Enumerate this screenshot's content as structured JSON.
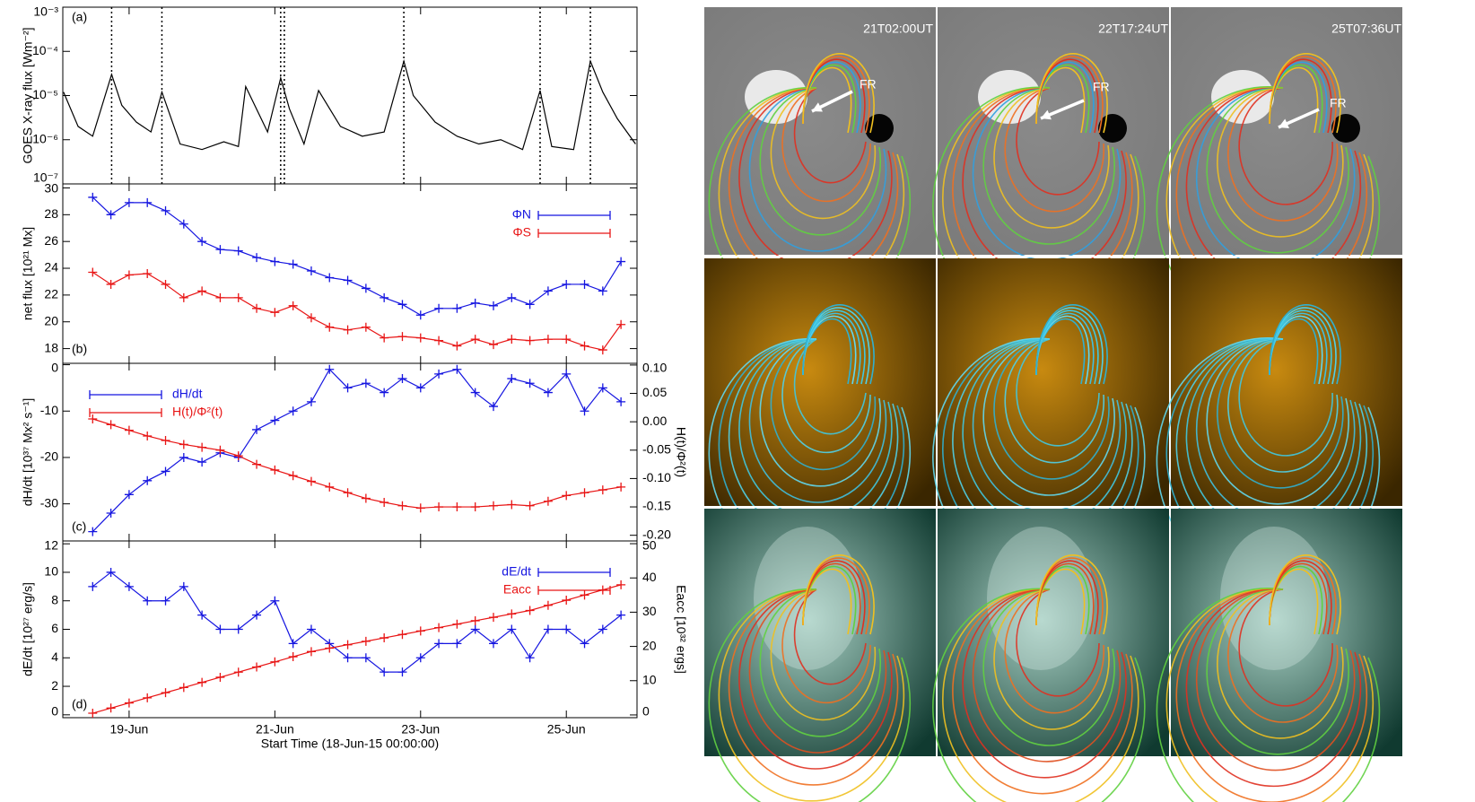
{
  "chart_data": [
    {
      "type": "line",
      "ylabel": "GOES X-ray flux [Wm⁻²]",
      "panel_label": "(a)",
      "log_y": true,
      "color": "#000000",
      "marker": "none",
      "xlim": [
        0.09,
        7.97
      ],
      "xticks": [
        1,
        3,
        5,
        7
      ],
      "ylim": [
        1e-07,
        0.001
      ],
      "yticks": [
        {
          "value": 1e-07,
          "label": "10⁻⁷"
        },
        {
          "value": 1e-06,
          "label": "10⁻⁶"
        },
        {
          "value": 1e-05,
          "label": "10⁻⁵"
        },
        {
          "value": 0.0001,
          "label": "10⁻⁴"
        },
        {
          "value": 0.001,
          "label": "10⁻³"
        }
      ],
      "vlines": [
        0.76,
        1.45,
        3.08,
        3.13,
        4.77,
        6.64,
        7.33
      ],
      "x": [
        0.1,
        0.3,
        0.5,
        0.76,
        0.9,
        1.1,
        1.3,
        1.45,
        1.7,
        2.0,
        2.3,
        2.5,
        2.6,
        2.9,
        3.08,
        3.2,
        3.4,
        3.6,
        3.9,
        4.2,
        4.5,
        4.77,
        4.9,
        5.2,
        5.5,
        5.8,
        6.1,
        6.4,
        6.64,
        6.8,
        7.1,
        7.33,
        7.5,
        7.7,
        7.95
      ],
      "values": [
        1.2e-05,
        2e-06,
        1.2e-06,
        3e-05,
        6e-06,
        2.5e-06,
        1.5e-06,
        1.2e-05,
        8e-07,
        6e-07,
        9e-07,
        7e-07,
        1.6e-05,
        1.5e-06,
        2.5e-05,
        5e-06,
        8e-07,
        1.3e-05,
        2e-06,
        1.2e-06,
        1.5e-06,
        6e-05,
        1e-05,
        2.5e-06,
        1.2e-06,
        8e-07,
        1e-06,
        6e-07,
        1.3e-05,
        7e-07,
        6e-07,
        6e-05,
        1.2e-05,
        3e-06,
        8e-07
      ]
    },
    {
      "type": "line",
      "ylabel": "net flux [10²¹ Mx]",
      "panel_label": "(b)",
      "legend": "upper right",
      "marker": "+",
      "xlim": [
        0.09,
        7.97
      ],
      "xticks": [
        1,
        3,
        5,
        7
      ],
      "ylim": [
        16.9,
        30.3
      ],
      "yticks": [
        18,
        20,
        22,
        24,
        26,
        28,
        30
      ],
      "x": [
        0.5,
        0.75,
        1.0,
        1.25,
        1.5,
        1.75,
        2.0,
        2.25,
        2.5,
        2.75,
        3.0,
        3.25,
        3.5,
        3.75,
        4.0,
        4.25,
        4.5,
        4.75,
        5.0,
        5.25,
        5.5,
        5.75,
        6.0,
        6.25,
        6.5,
        6.75,
        7.0,
        7.25,
        7.5,
        7.75
      ],
      "series": [
        {
          "name": "ΦN",
          "color": "#1515e0",
          "values": [
            29.3,
            28.0,
            28.9,
            28.9,
            28.3,
            27.3,
            26.0,
            25.4,
            25.3,
            24.8,
            24.5,
            24.3,
            23.8,
            23.3,
            23.1,
            22.5,
            21.8,
            21.3,
            20.5,
            21.0,
            21.0,
            21.4,
            21.2,
            21.8,
            21.3,
            22.3,
            22.8,
            22.8,
            22.3,
            24.5
          ]
        },
        {
          "name": "ΦS",
          "color": "#e81515",
          "values": [
            23.7,
            22.8,
            23.5,
            23.6,
            22.8,
            21.8,
            22.3,
            21.8,
            21.8,
            21.0,
            20.7,
            21.2,
            20.3,
            19.6,
            19.4,
            19.6,
            18.8,
            18.9,
            18.8,
            18.6,
            18.2,
            18.7,
            18.3,
            18.7,
            18.6,
            18.7,
            18.7,
            18.2,
            17.9,
            19.8
          ]
        }
      ]
    },
    {
      "type": "line",
      "ylabel": "dH/dt [10³⁷ Mx² s⁻¹]",
      "y2label": "H(t)/Φ²(t)",
      "panel_label": "(c)",
      "legend": "upper left",
      "marker": "+",
      "xlim": [
        0.09,
        7.97
      ],
      "xticks": [
        1,
        3,
        5,
        7
      ],
      "ylim": [
        -38,
        0.3
      ],
      "yticks": [
        0,
        -10,
        -20,
        -30
      ],
      "y2lim": [
        -0.21,
        0.103
      ],
      "y2ticks": [
        {
          "value": 0.1,
          "label": "0.10"
        },
        0.05,
        {
          "value": 0,
          "label": "0.00"
        },
        -0.05,
        {
          "value": -0.1,
          "label": "-0.10"
        },
        -0.15,
        {
          "value": -0.2,
          "label": "-0.20"
        }
      ],
      "x": [
        0.5,
        0.75,
        1.0,
        1.25,
        1.5,
        1.75,
        2.0,
        2.25,
        2.5,
        2.75,
        3.0,
        3.25,
        3.5,
        3.75,
        4.0,
        4.25,
        4.5,
        4.75,
        5.0,
        5.25,
        5.5,
        5.75,
        6.0,
        6.25,
        6.5,
        6.75,
        7.0,
        7.25,
        7.5,
        7.75
      ],
      "series": [
        {
          "name": "dH/dt",
          "color": "#1515e0",
          "values": [
            -36,
            -32,
            -28,
            -25,
            -23,
            -20,
            -21,
            -19,
            -20,
            -14,
            -12,
            -10,
            -8,
            -1,
            -5,
            -4,
            -6,
            -3,
            -5,
            -2,
            -1,
            -6,
            -9,
            -3,
            -4,
            -6,
            -2,
            -10,
            -5,
            -8
          ]
        },
        {
          "name": "H(t)/Φ²(t)",
          "color": "#e81515",
          "axis": "y2",
          "values": [
            0.005,
            -0.005,
            -0.015,
            -0.025,
            -0.033,
            -0.04,
            -0.045,
            -0.05,
            -0.06,
            -0.075,
            -0.085,
            -0.095,
            -0.105,
            -0.115,
            -0.125,
            -0.135,
            -0.142,
            -0.148,
            -0.152,
            -0.15,
            -0.15,
            -0.15,
            -0.148,
            -0.146,
            -0.148,
            -0.14,
            -0.13,
            -0.125,
            -0.12,
            -0.115
          ]
        }
      ]
    },
    {
      "type": "line",
      "ylabel": "dE/dt [10²⁷ erg/s]",
      "y2label": "Eacc [10³² ergs]",
      "panel_label": "(d)",
      "legend": "upper right",
      "marker": "+",
      "xlabel": "Start Time (18-Jun-15 00:00:00)",
      "xlim": [
        0.09,
        7.97
      ],
      "xticks": [
        {
          "value": 1,
          "label": "19-Jun"
        },
        {
          "value": 3,
          "label": "21-Jun"
        },
        {
          "value": 5,
          "label": "23-Jun"
        },
        {
          "value": 7,
          "label": "25-Jun"
        }
      ],
      "ylim": [
        -0.2,
        12.2
      ],
      "yticks": [
        0,
        2,
        4,
        6,
        8,
        10,
        12
      ],
      "y2lim": [
        -0.8,
        50.8
      ],
      "y2ticks": [
        0,
        10,
        20,
        30,
        40,
        50
      ],
      "x": [
        0.5,
        0.75,
        1.0,
        1.25,
        1.5,
        1.75,
        2.0,
        2.25,
        2.5,
        2.75,
        3.0,
        3.25,
        3.5,
        3.75,
        4.0,
        4.25,
        4.5,
        4.75,
        5.0,
        5.25,
        5.5,
        5.75,
        6.0,
        6.25,
        6.5,
        6.75,
        7.0,
        7.25,
        7.5,
        7.75
      ],
      "series": [
        {
          "name": "dE/dt",
          "color": "#1515e0",
          "values": [
            9,
            10,
            9,
            8,
            8,
            9,
            7,
            6,
            6,
            7,
            8,
            5,
            6,
            5,
            4,
            4,
            3,
            3,
            4,
            5,
            5,
            6,
            5,
            6,
            4,
            6,
            6,
            5,
            6,
            7
          ]
        },
        {
          "name": "Eacc",
          "color": "#e81515",
          "axis": "y2",
          "values": [
            0.5,
            2,
            3.5,
            5,
            6.5,
            8,
            9.5,
            11,
            12.5,
            14,
            15.5,
            17,
            18.5,
            19.5,
            20.5,
            21.5,
            22.5,
            23.5,
            24.5,
            25.5,
            26.5,
            27.5,
            28.5,
            29.5,
            30.5,
            32,
            33.5,
            35,
            36.5,
            38
          ]
        }
      ]
    }
  ],
  "images": {
    "labels": [
      "21T02:00UT",
      "22T17:24UT",
      "25T07:36UT"
    ],
    "annotations": [
      "FR",
      "FR",
      "FR"
    ]
  }
}
